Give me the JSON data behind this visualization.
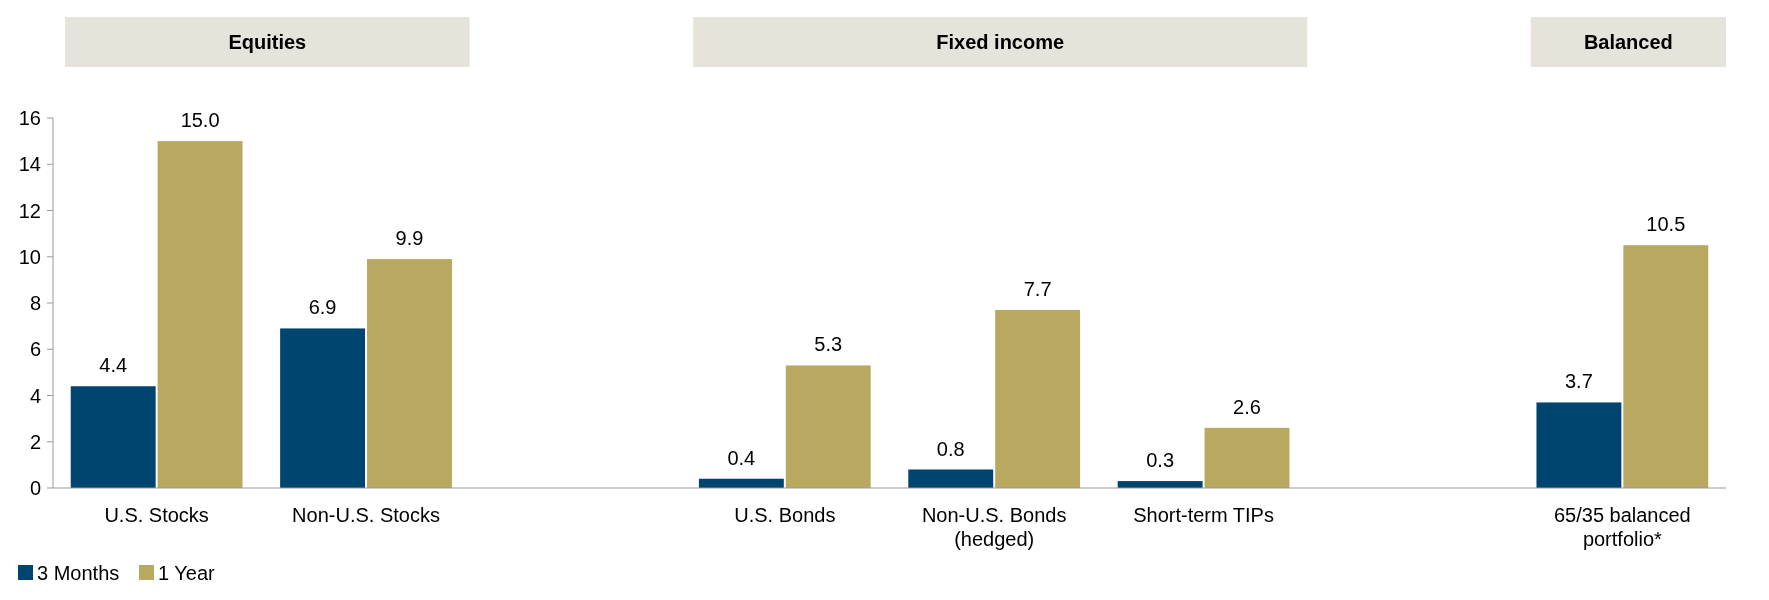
{
  "chart_data": {
    "type": "bar",
    "categories": [
      "U.S. Stocks",
      "Non-U.S. Stocks",
      null,
      "U.S. Bonds",
      "Non-U.S. Bonds (hedged)",
      "Short-term TIPs",
      null,
      "65/35 balanced portfolio*"
    ],
    "series": [
      {
        "name": "3 Months",
        "color": "#004470",
        "values": [
          4.4,
          6.9,
          null,
          0.4,
          0.8,
          0.3,
          null,
          3.7
        ],
        "value_labels": [
          "4.4",
          "6.9",
          null,
          "0.4",
          "0.8",
          "0.3",
          null,
          "3.7"
        ]
      },
      {
        "name": "1 Year",
        "color": "#b8a860",
        "values": [
          15.0,
          9.9,
          null,
          5.3,
          7.7,
          2.6,
          null,
          10.5
        ],
        "value_labels": [
          "15.0",
          "9.9",
          null,
          "5.3",
          "7.7",
          "2.6",
          null,
          "10.5"
        ]
      }
    ],
    "ylim": [
      0,
      16
    ],
    "yticks": [
      0,
      2,
      4,
      6,
      8,
      10,
      12,
      14,
      16
    ],
    "grid": false,
    "legend": "bottom left",
    "annotations": [
      "Equities",
      "Fixed income",
      "Balanced"
    ]
  }
}
